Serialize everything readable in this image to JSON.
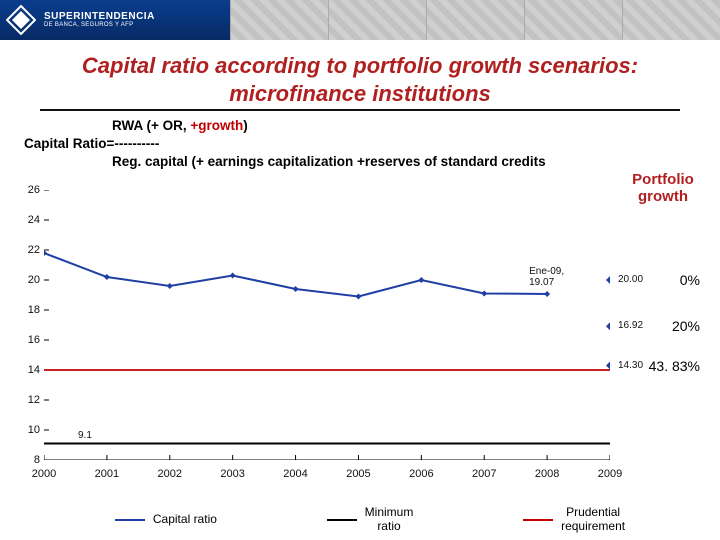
{
  "logo": {
    "line1": "SUPERINTENDENCIA",
    "line2": "DE BANCA, SEGUROS Y AFP"
  },
  "title": "Capital ratio according to portfolio growth scenarios: microfinance institutions",
  "formula": {
    "rwa_prefix": "RWA  (+ OR, ",
    "rwa_growth": "+growth",
    "rwa_suffix": ")",
    "ratio_line": "Capital Ratio=----------",
    "reg_line": "Reg. capital (+ earnings capitalization +reserves of standard credits"
  },
  "portfolio_growth_label": "Portfolio growth",
  "legend": {
    "capital": "Capital ratio",
    "minimum": "Minimum ratio",
    "prudential": "Prudential requirement"
  },
  "chart": {
    "type": "line",
    "background_color": "#ffffff",
    "plot_border_color": "#000000",
    "ylim": [
      8,
      26
    ],
    "ytick_step": 2,
    "yticks": [
      8,
      10,
      12,
      14,
      16,
      18,
      20,
      22,
      24,
      26
    ],
    "x_categories": [
      "2000",
      "2001",
      "2002",
      "2003",
      "2004",
      "2005",
      "2006",
      "2007",
      "2008",
      "2009"
    ],
    "axis_font_size": 11,
    "minimum_line": {
      "value": 9.1,
      "color": "#000000",
      "width": 2,
      "label": "9.1"
    },
    "prudential_line": {
      "value": 14,
      "color": "#c00000",
      "width": 1.8
    },
    "capital_series": {
      "color": "#1f3fa5",
      "width": 2,
      "marker": "diamond",
      "marker_size": 6,
      "values": [
        21.8,
        20.2,
        19.6,
        20.3,
        19.4,
        18.9,
        20.0,
        19.1,
        19.07,
        null
      ],
      "callout": {
        "x_index": 8,
        "text_top": "Ene-09,",
        "text_bot": "19.07"
      }
    },
    "scenario_points": [
      {
        "y": 20.0,
        "label": "20.00",
        "color": "#1f3fa5",
        "pct": "0%"
      },
      {
        "y": 16.92,
        "label": "16.92",
        "color": "#1f3fa5",
        "pct": "20%"
      },
      {
        "y": 14.3,
        "label": "14.30",
        "color": "#1f3fa5",
        "pct": "43. 83%"
      }
    ]
  },
  "colors": {
    "title": "#b02020",
    "accent_red": "#c00000",
    "series_blue": "#1f3fa5"
  }
}
